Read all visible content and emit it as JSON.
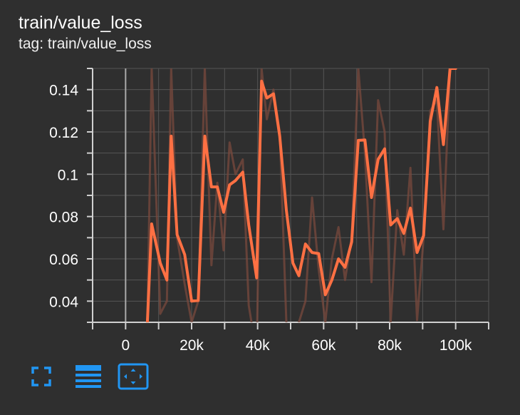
{
  "card": {
    "title": "train/value_loss",
    "tag": "tag: train/value_loss"
  },
  "colors": {
    "background": "#2f2f2f",
    "smoothed_line": "#ff7043",
    "raw_line": "#7a4a3e",
    "grid": "#555555",
    "axis": "#d0d0d0",
    "icon_accent": "#2196f3"
  },
  "toolbar": {
    "icons": [
      "fullscreen-icon",
      "toggle-log-scale-icon",
      "fit-domain-icon"
    ]
  },
  "chart_data": {
    "type": "line",
    "title": "train/value_loss",
    "xlabel": "",
    "ylabel": "",
    "xlim": [
      -10000,
      110000
    ],
    "ylim": [
      0.03,
      0.15
    ],
    "grid": true,
    "x_ticks": [
      0,
      20000,
      40000,
      60000,
      80000,
      100000
    ],
    "x_tick_labels": [
      "0",
      "20k",
      "40k",
      "60k",
      "80k",
      "100k"
    ],
    "y_ticks": [
      0.04,
      0.06,
      0.08,
      0.1,
      0.12,
      0.14
    ],
    "y_tick_labels": [
      "0.04",
      "0.06",
      "0.08",
      "0.1",
      "0.12",
      "0.14"
    ],
    "series": [
      {
        "role": "raw",
        "x": [
          6600,
          7900,
          10500,
          12500,
          13800,
          15600,
          17900,
          20000,
          22000,
          24000,
          26000,
          27800,
          29700,
          31500,
          33300,
          35500,
          37300,
          39700,
          41200,
          42800,
          44800,
          46700,
          48700,
          50700,
          52500,
          54500,
          56500,
          58500,
          60500,
          62500,
          64500,
          66500,
          68500,
          70500,
          72500,
          74500,
          76500,
          78500,
          80300,
          82300,
          84300,
          86300,
          88300,
          90300,
          92300,
          94300,
          96300,
          98300,
          100000
        ],
        "y": [
          0.03,
          0.15,
          0.034,
          0.04,
          0.15,
          0.07,
          0.048,
          0.03,
          0.04,
          0.15,
          0.057,
          0.096,
          0.064,
          0.115,
          0.1,
          0.107,
          0.038,
          0.015,
          0.15,
          0.126,
          0.14,
          0.12,
          0.03,
          0.01,
          0.03,
          0.04,
          0.089,
          0.055,
          0.03,
          0.06,
          0.075,
          0.05,
          0.07,
          0.15,
          0.11,
          0.049,
          0.135,
          0.12,
          0.03,
          0.083,
          0.062,
          0.103,
          0.031,
          0.07,
          0.13,
          0.135,
          0.074,
          0.15,
          0.15
        ]
      },
      {
        "role": "smoothed",
        "x": [
          6600,
          7900,
          10500,
          12500,
          13800,
          15600,
          17900,
          20000,
          22000,
          24000,
          26000,
          27800,
          29700,
          31500,
          33300,
          35500,
          37300,
          39700,
          41200,
          42800,
          44800,
          46700,
          48700,
          50700,
          52500,
          54500,
          56500,
          58500,
          60500,
          62500,
          64500,
          66500,
          68500,
          70500,
          72500,
          74500,
          76500,
          78500,
          80300,
          82300,
          84300,
          86300,
          88300,
          90300,
          92300,
          94300,
          96300,
          98300,
          100000
        ],
        "y": [
          0.03,
          0.0765,
          0.058,
          0.05,
          0.118,
          0.0715,
          0.062,
          0.04,
          0.0403,
          0.118,
          0.094,
          0.094,
          0.082,
          0.095,
          0.097,
          0.101,
          0.076,
          0.051,
          0.144,
          0.136,
          0.138,
          0.118,
          0.083,
          0.058,
          0.052,
          0.067,
          0.063,
          0.0625,
          0.043,
          0.05,
          0.06,
          0.056,
          0.068,
          0.116,
          0.1162,
          0.089,
          0.107,
          0.112,
          0.076,
          0.079,
          0.072,
          0.084,
          0.063,
          0.071,
          0.125,
          0.141,
          0.114,
          0.15,
          0.15
        ]
      }
    ]
  }
}
